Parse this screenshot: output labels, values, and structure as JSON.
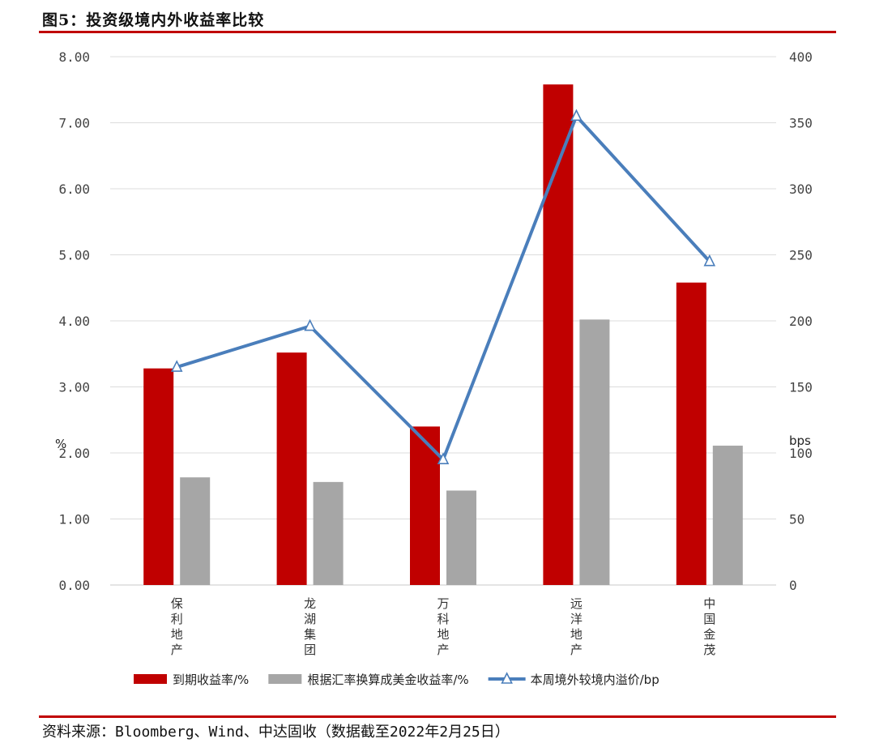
{
  "title": "图5：投资级境内外收益率比较",
  "source": "资料来源：Bloomberg、Wind、中达固收（数据截至2022年2月25日）",
  "chart_data": {
    "type": "bar",
    "categories": [
      "保利地产",
      "龙湖集团",
      "万科地产",
      "远洋地产",
      "中国金茂"
    ],
    "series": [
      {
        "name": "到期收益率/%",
        "type": "bar",
        "axis": "left",
        "color": "#c00000",
        "values": [
          3.28,
          3.52,
          2.4,
          7.58,
          4.58
        ]
      },
      {
        "name": "根据汇率换算成美金收益率/%",
        "type": "bar",
        "axis": "left",
        "color": "#a6a6a6",
        "values": [
          1.63,
          1.56,
          1.43,
          4.02,
          2.11
        ]
      },
      {
        "name": "本周境外较境内溢价/bp",
        "type": "line",
        "axis": "right",
        "color": "#4a7ebb",
        "values": [
          165,
          196,
          95,
          355,
          245
        ]
      }
    ],
    "y_left": {
      "label": "%",
      "min": 0,
      "max": 8,
      "ticks": [
        "0.00",
        "1.00",
        "2.00",
        "3.00",
        "4.00",
        "5.00",
        "6.00",
        "7.00",
        "8.00"
      ]
    },
    "y_right": {
      "label": "bps",
      "min": 0,
      "max": 400,
      "ticks": [
        "0",
        "50",
        "100",
        "150",
        "200",
        "250",
        "300",
        "350",
        "400"
      ]
    },
    "grid": true,
    "legend_position": "bottom"
  }
}
